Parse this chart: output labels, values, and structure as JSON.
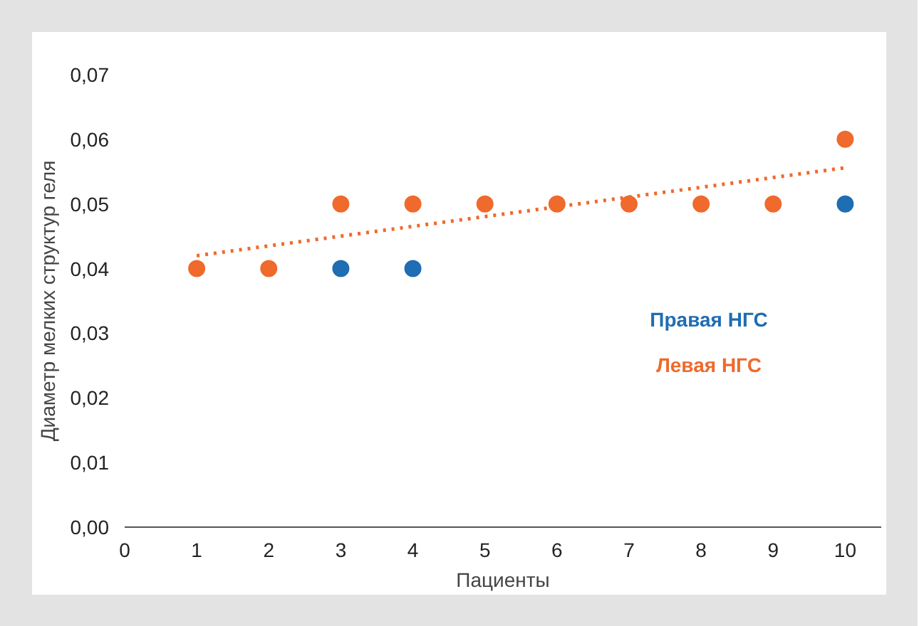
{
  "chart_data": {
    "type": "scatter",
    "xlabel": "Пациенты",
    "ylabel": "Диаметр мелких структур геля",
    "x": [
      1,
      2,
      3,
      4,
      5,
      6,
      7,
      8,
      9,
      10
    ],
    "series": [
      {
        "name": "Правая НГС",
        "color": "#1f6db3",
        "marker": "circle",
        "values": [
          null,
          null,
          0.04,
          0.04,
          null,
          null,
          null,
          null,
          null,
          0.05
        ]
      },
      {
        "name": "Левая НГС",
        "color": "#ef6a2c",
        "marker": "circle",
        "values": [
          0.04,
          0.04,
          0.05,
          0.05,
          0.05,
          0.05,
          0.05,
          0.05,
          0.05,
          0.06
        ]
      },
      {
        "type": "line",
        "color": "#ef6a2c",
        "line_style": "dotted",
        "x": [
          1,
          10
        ],
        "values": [
          0.042,
          0.0556
        ]
      }
    ],
    "xlim": [
      0,
      10.5
    ],
    "xticks": [
      0,
      1,
      2,
      3,
      4,
      5,
      6,
      7,
      8,
      9,
      10
    ],
    "ylim": [
      0,
      0.07
    ],
    "yticks": [
      {
        "value": 0,
        "label": "0,00"
      },
      {
        "value": 0.01,
        "label": "0,01"
      },
      {
        "value": 0.02,
        "label": "0,02"
      },
      {
        "value": 0.03,
        "label": "0,03"
      },
      {
        "value": 0.04,
        "label": "0,04"
      },
      {
        "value": 0.05,
        "label": "0,05"
      },
      {
        "value": 0.06,
        "label": "0,06"
      },
      {
        "value": 0.07,
        "label": "0,07"
      }
    ],
    "grid": false,
    "legend": "right"
  }
}
